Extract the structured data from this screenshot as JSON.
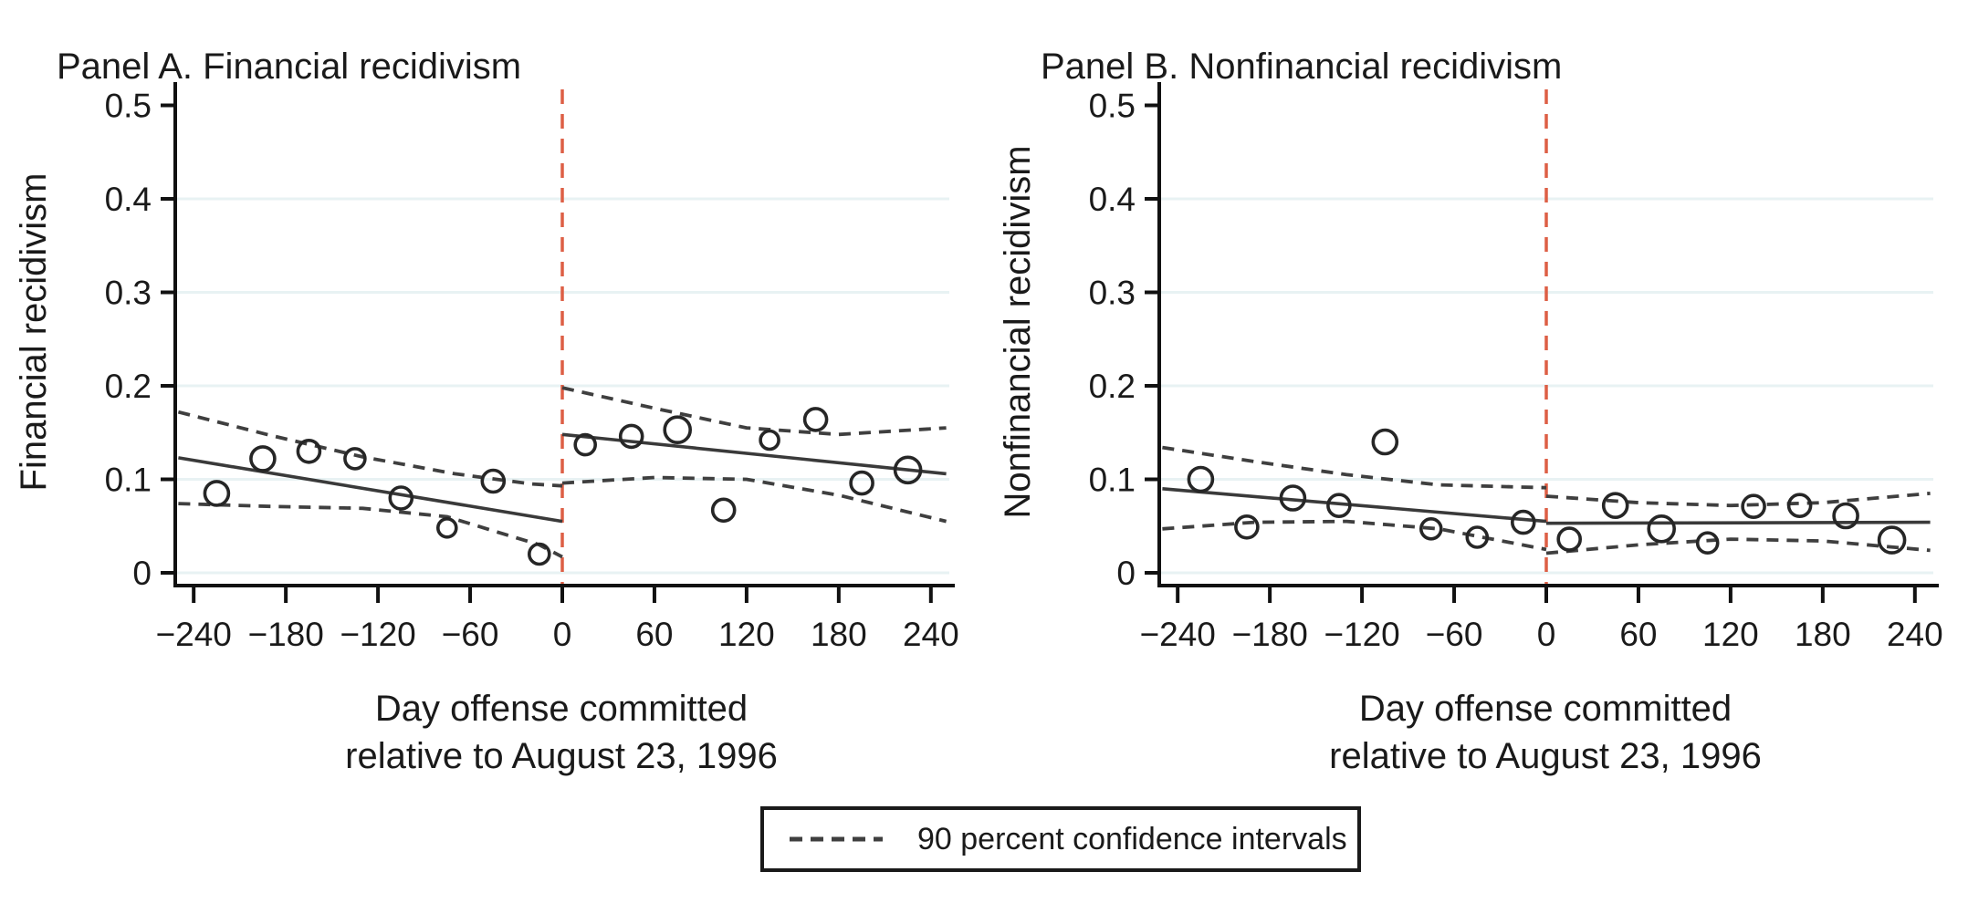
{
  "figure": {
    "background": "#ffffff",
    "xlabel_line1": "Day offense committed",
    "xlabel_line2": "relative to August 23, 1996",
    "legend": {
      "label": "90 percent confidence intervals"
    },
    "colors": {
      "text": "#1a1a1a",
      "axis": "#111111",
      "gridline": "#e8f2f3",
      "fit_line": "#3a3a3a",
      "ci_dash": "#3f3f3f",
      "marker": "#262626",
      "cutoff_red": "#dd5f45"
    }
  },
  "chart_data": [
    {
      "panel": "A",
      "type": "scatter",
      "title": "Panel A. Financial recidivism",
      "ylabel": "Financial recidivism",
      "xlabel": "Day offense committed relative to August 23, 1996",
      "x_range": [
        -252,
        252
      ],
      "y_range": [
        0,
        0.52
      ],
      "x_ticks": [
        -240,
        -180,
        -120,
        -60,
        0,
        60,
        120,
        180,
        240
      ],
      "y_ticks": [
        0,
        0.1,
        0.2,
        0.3,
        0.4,
        0.5
      ],
      "grid_at": [
        0,
        0.1,
        0.2,
        0.3,
        0.4
      ],
      "cutoff_x": 0,
      "points": [
        [
          -225,
          0.085,
          13
        ],
        [
          -195,
          0.122,
          13
        ],
        [
          -165,
          0.13,
          12
        ],
        [
          -135,
          0.122,
          11
        ],
        [
          -105,
          0.08,
          12
        ],
        [
          -75,
          0.048,
          10
        ],
        [
          -45,
          0.098,
          12
        ],
        [
          -15,
          0.02,
          11
        ],
        [
          15,
          0.137,
          11
        ],
        [
          45,
          0.146,
          12
        ],
        [
          75,
          0.153,
          14
        ],
        [
          105,
          0.067,
          12
        ],
        [
          135,
          0.142,
          10
        ],
        [
          165,
          0.164,
          12
        ],
        [
          195,
          0.096,
          12
        ],
        [
          225,
          0.11,
          14
        ]
      ],
      "fit_left": [
        [
          -250,
          0.123
        ],
        [
          0,
          0.055
        ]
      ],
      "fit_right": [
        [
          0,
          0.148
        ],
        [
          250,
          0.106
        ]
      ],
      "ci_upper_left": [
        [
          -250,
          0.172
        ],
        [
          -190,
          0.147
        ],
        [
          -130,
          0.124
        ],
        [
          -70,
          0.106
        ],
        [
          -20,
          0.095
        ],
        [
          0,
          0.093
        ]
      ],
      "ci_lower_left": [
        [
          -250,
          0.074
        ],
        [
          -190,
          0.071
        ],
        [
          -130,
          0.069
        ],
        [
          -75,
          0.06
        ],
        [
          -45,
          0.045
        ],
        [
          -15,
          0.03
        ],
        [
          0,
          0.017
        ]
      ],
      "ci_upper_right": [
        [
          0,
          0.198
        ],
        [
          60,
          0.176
        ],
        [
          120,
          0.155
        ],
        [
          180,
          0.148
        ],
        [
          250,
          0.155
        ]
      ],
      "ci_lower_right": [
        [
          0,
          0.096
        ],
        [
          60,
          0.102
        ],
        [
          120,
          0.1
        ],
        [
          180,
          0.083
        ],
        [
          250,
          0.055
        ]
      ]
    },
    {
      "panel": "B",
      "type": "scatter",
      "title": "Panel B. Nonfinancial recidivism",
      "ylabel": "Nonfinancial recidivism",
      "xlabel": "Day offense committed relative to August 23, 1996",
      "x_range": [
        -252,
        252
      ],
      "y_range": [
        0,
        0.52
      ],
      "x_ticks": [
        -240,
        -180,
        -120,
        -60,
        0,
        60,
        120,
        180,
        240
      ],
      "y_ticks": [
        0,
        0.1,
        0.2,
        0.3,
        0.4,
        0.5
      ],
      "grid_at": [
        0,
        0.1,
        0.2,
        0.3,
        0.4
      ],
      "cutoff_x": 0,
      "points": [
        [
          -225,
          0.1,
          13
        ],
        [
          -195,
          0.049,
          12
        ],
        [
          -165,
          0.08,
          13
        ],
        [
          -135,
          0.072,
          12
        ],
        [
          -105,
          0.14,
          13
        ],
        [
          -75,
          0.047,
          11
        ],
        [
          -45,
          0.038,
          11
        ],
        [
          -15,
          0.054,
          12
        ],
        [
          15,
          0.036,
          12
        ],
        [
          45,
          0.072,
          13
        ],
        [
          75,
          0.047,
          14
        ],
        [
          105,
          0.032,
          11
        ],
        [
          135,
          0.071,
          12
        ],
        [
          165,
          0.072,
          12
        ],
        [
          195,
          0.061,
          13
        ],
        [
          225,
          0.035,
          14
        ]
      ],
      "fit_left": [
        [
          -250,
          0.09
        ],
        [
          0,
          0.055
        ]
      ],
      "fit_right": [
        [
          0,
          0.053
        ],
        [
          250,
          0.054
        ]
      ],
      "ci_upper_left": [
        [
          -250,
          0.134
        ],
        [
          -190,
          0.119
        ],
        [
          -130,
          0.105
        ],
        [
          -70,
          0.094
        ],
        [
          0,
          0.091
        ]
      ],
      "ci_lower_left": [
        [
          -250,
          0.047
        ],
        [
          -190,
          0.054
        ],
        [
          -130,
          0.055
        ],
        [
          -70,
          0.047
        ],
        [
          -35,
          0.036
        ],
        [
          0,
          0.025
        ]
      ],
      "ci_upper_right": [
        [
          0,
          0.082
        ],
        [
          60,
          0.075
        ],
        [
          120,
          0.072
        ],
        [
          180,
          0.075
        ],
        [
          250,
          0.085
        ]
      ],
      "ci_lower_right": [
        [
          0,
          0.021
        ],
        [
          60,
          0.03
        ],
        [
          120,
          0.036
        ],
        [
          180,
          0.034
        ],
        [
          250,
          0.024
        ]
      ]
    }
  ]
}
